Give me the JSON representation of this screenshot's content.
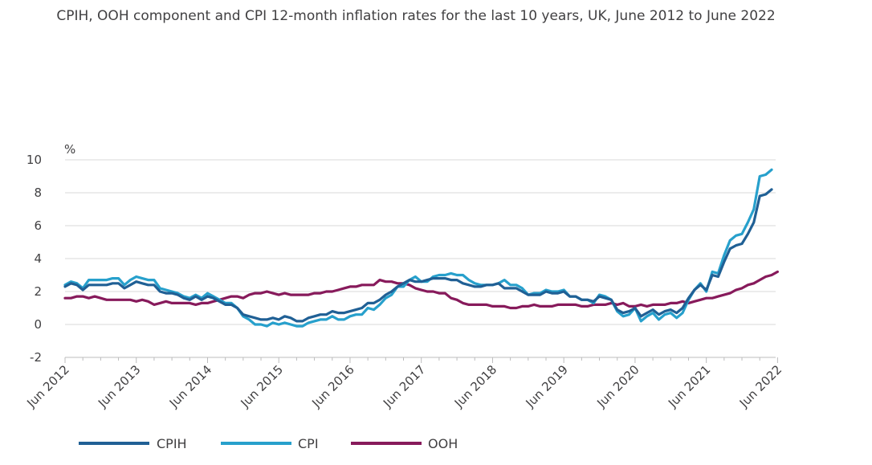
{
  "chart_data": {
    "type": "line",
    "title": "CPIH, OOH component and CPI 12-month inflation rates for the last 10 years, UK, June 2012 to June 2022",
    "ylabel": "%",
    "ylim": [
      -2,
      10
    ],
    "yticks": [
      "10",
      "8",
      "6",
      "4",
      "2",
      "0",
      "-2"
    ],
    "ytick_values": [
      10,
      8,
      6,
      4,
      2,
      0,
      -2
    ],
    "x_tick_labels": [
      "Jun 2012",
      "Jun 2013",
      "Jun 2014",
      "Jun 2015",
      "Jun 2016",
      "Jun 2017",
      "Jun 2018",
      "Jun 2019",
      "Jun 2020",
      "Jun 2021",
      "Jun 2022"
    ],
    "x_start": "Jun 2012",
    "x_end": "Jun 2022",
    "grid": true,
    "legend_position": "bottom",
    "colors": {
      "CPIH": "#206095",
      "CPI": "#27a0cc",
      "OOH": "#871a5b"
    },
    "series": [
      {
        "name": "CPIH",
        "values": [
          2.3,
          2.5,
          2.4,
          2.1,
          2.4,
          2.4,
          2.4,
          2.4,
          2.5,
          2.5,
          2.2,
          2.4,
          2.6,
          2.5,
          2.4,
          2.4,
          2.0,
          1.9,
          1.9,
          1.8,
          1.6,
          1.5,
          1.7,
          1.5,
          1.7,
          1.6,
          1.4,
          1.2,
          1.2,
          1.0,
          0.6,
          0.5,
          0.4,
          0.3,
          0.3,
          0.4,
          0.3,
          0.5,
          0.4,
          0.2,
          0.2,
          0.4,
          0.5,
          0.6,
          0.6,
          0.8,
          0.7,
          0.7,
          0.8,
          0.9,
          1.0,
          1.3,
          1.3,
          1.5,
          1.8,
          2.0,
          2.3,
          2.5,
          2.7,
          2.6,
          2.6,
          2.7,
          2.8,
          2.8,
          2.8,
          2.7,
          2.7,
          2.5,
          2.4,
          2.3,
          2.3,
          2.4,
          2.4,
          2.5,
          2.2,
          2.2,
          2.2,
          2.0,
          1.8,
          1.8,
          1.8,
          2.0,
          1.9,
          1.9,
          2.0,
          1.7,
          1.7,
          1.5,
          1.5,
          1.4,
          1.7,
          1.6,
          1.5,
          0.9,
          0.7,
          0.8,
          1.0,
          0.5,
          0.7,
          0.9,
          0.6,
          0.8,
          0.9,
          0.7,
          1.0,
          1.6,
          2.1,
          2.4,
          2.1,
          3.0,
          2.9,
          3.8,
          4.6,
          4.8,
          4.9,
          5.5,
          6.2,
          7.8,
          7.9,
          8.2
        ]
      },
      {
        "name": "CPI",
        "values": [
          2.4,
          2.6,
          2.5,
          2.2,
          2.7,
          2.7,
          2.7,
          2.7,
          2.8,
          2.8,
          2.4,
          2.7,
          2.9,
          2.8,
          2.7,
          2.7,
          2.2,
          2.1,
          2.0,
          1.9,
          1.7,
          1.6,
          1.8,
          1.6,
          1.9,
          1.7,
          1.5,
          1.3,
          1.3,
          1.0,
          0.5,
          0.3,
          0.0,
          0.0,
          -0.1,
          0.1,
          0.0,
          0.1,
          0.0,
          -0.1,
          -0.1,
          0.1,
          0.2,
          0.3,
          0.3,
          0.5,
          0.3,
          0.3,
          0.5,
          0.6,
          0.6,
          1.0,
          0.9,
          1.2,
          1.6,
          1.8,
          2.3,
          2.3,
          2.7,
          2.9,
          2.6,
          2.6,
          2.9,
          3.0,
          3.0,
          3.1,
          3.0,
          3.0,
          2.7,
          2.5,
          2.4,
          2.4,
          2.4,
          2.5,
          2.7,
          2.4,
          2.4,
          2.2,
          1.8,
          1.9,
          1.9,
          2.1,
          2.0,
          2.0,
          2.1,
          1.7,
          1.7,
          1.5,
          1.5,
          1.3,
          1.8,
          1.7,
          1.5,
          0.8,
          0.5,
          0.6,
          1.0,
          0.2,
          0.5,
          0.7,
          0.3,
          0.6,
          0.7,
          0.4,
          0.7,
          1.5,
          2.1,
          2.5,
          2.0,
          3.2,
          3.1,
          4.2,
          5.1,
          5.4,
          5.5,
          6.2,
          7.0,
          9.0,
          9.1,
          9.4
        ]
      },
      {
        "name": "OOH",
        "values": [
          1.6,
          1.6,
          1.7,
          1.7,
          1.6,
          1.7,
          1.6,
          1.5,
          1.5,
          1.5,
          1.5,
          1.5,
          1.4,
          1.5,
          1.4,
          1.2,
          1.3,
          1.4,
          1.3,
          1.3,
          1.3,
          1.3,
          1.2,
          1.3,
          1.3,
          1.4,
          1.5,
          1.6,
          1.7,
          1.7,
          1.6,
          1.8,
          1.9,
          1.9,
          2.0,
          1.9,
          1.8,
          1.9,
          1.8,
          1.8,
          1.8,
          1.8,
          1.9,
          1.9,
          2.0,
          2.0,
          2.1,
          2.2,
          2.3,
          2.3,
          2.4,
          2.4,
          2.4,
          2.7,
          2.6,
          2.6,
          2.5,
          2.5,
          2.4,
          2.2,
          2.1,
          2.0,
          2.0,
          1.9,
          1.9,
          1.6,
          1.5,
          1.3,
          1.2,
          1.2,
          1.2,
          1.2,
          1.1,
          1.1,
          1.1,
          1.0,
          1.0,
          1.1,
          1.1,
          1.2,
          1.1,
          1.1,
          1.1,
          1.2,
          1.2,
          1.2,
          1.2,
          1.1,
          1.1,
          1.2,
          1.2,
          1.2,
          1.3,
          1.2,
          1.3,
          1.1,
          1.1,
          1.2,
          1.1,
          1.2,
          1.2,
          1.2,
          1.3,
          1.3,
          1.4,
          1.3,
          1.4,
          1.5,
          1.6,
          1.6,
          1.7,
          1.8,
          1.9,
          2.1,
          2.2,
          2.4,
          2.5,
          2.7,
          2.9,
          3.0,
          3.2
        ]
      }
    ]
  },
  "legend": [
    {
      "label": "CPIH",
      "color": "#206095"
    },
    {
      "label": "CPI",
      "color": "#27a0cc"
    },
    {
      "label": "OOH",
      "color": "#871a5b"
    }
  ]
}
